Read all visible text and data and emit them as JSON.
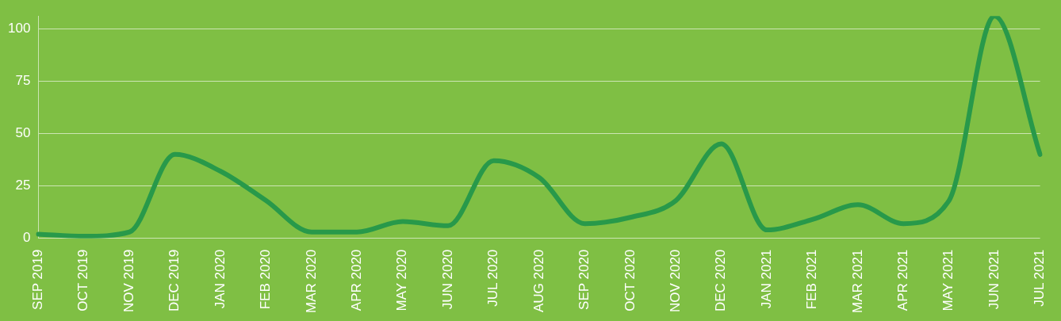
{
  "chart_data": {
    "type": "line",
    "categories": [
      "SEP 2019",
      "OCT 2019",
      "NOV 2019",
      "DEC 2019",
      "JAN 2020",
      "FEB 2020",
      "MAR 2020",
      "APR 2020",
      "MAY 2020",
      "JUN 2020",
      "JUL 2020",
      "AUG 2020",
      "SEP 2020",
      "OCT 2020",
      "NOV 2020",
      "DEC 2020",
      "JAN 2021",
      "FEB 2021",
      "MAR 2021",
      "APR 2021",
      "MAY 2021",
      "JUN 2021",
      "JUL 2021"
    ],
    "series": [
      {
        "color": "#28994a",
        "values": [
          2,
          1,
          3,
          40,
          32,
          18,
          3,
          3,
          8,
          6,
          37,
          29,
          7,
          10,
          18,
          45,
          4,
          9,
          16,
          7,
          18,
          106,
          40
        ]
      }
    ],
    "ylim": [
      0,
      106
    ],
    "yticks": [
      0,
      25,
      50,
      75,
      100
    ],
    "grid": "y",
    "legend": false,
    "marker": "none",
    "line_style": "solid"
  }
}
